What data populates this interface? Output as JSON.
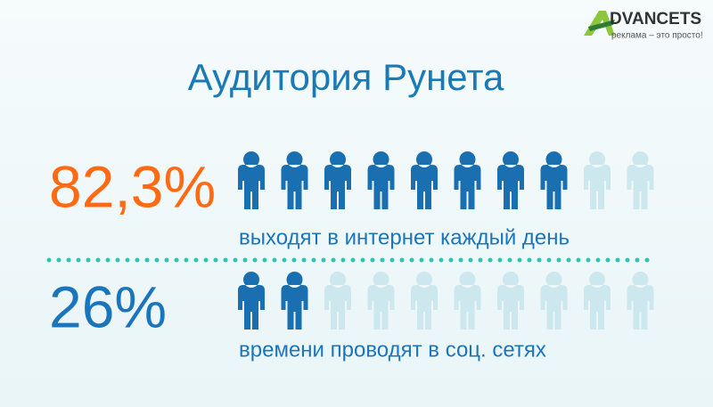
{
  "logo": {
    "name": "DVANCETS",
    "slogan": "реклама – это просто!"
  },
  "title": "Аудитория Рунета",
  "stats": [
    {
      "value": 82.3,
      "label": "82,3%",
      "caption": "выходят в интернет каждый день",
      "color": "#ff6a13"
    },
    {
      "value": 26,
      "label": "26%",
      "caption": "времени проводят в соц. сетях",
      "color": "#1a75bb"
    }
  ]
}
